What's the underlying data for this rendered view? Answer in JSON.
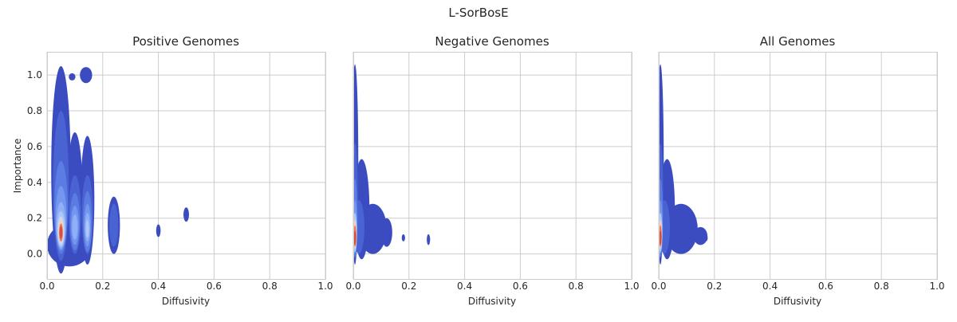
{
  "chart_data": {
    "type": "kde-density",
    "suptitle": "L-SorBosE",
    "shared_y": true,
    "ylabel": "Importance",
    "xlim": [
      0.0,
      1.0
    ],
    "ylim": [
      -0.14,
      1.13
    ],
    "x_ticks": [
      "0.0",
      "0.2",
      "0.4",
      "0.6",
      "0.8",
      "1.0"
    ],
    "y_ticks": [
      "0.0",
      "0.2",
      "0.4",
      "0.6",
      "0.8",
      "1.0"
    ],
    "x_tick_values": [
      0.0,
      0.2,
      0.4,
      0.6,
      0.8,
      1.0
    ],
    "y_tick_values": [
      0.0,
      0.2,
      0.4,
      0.6,
      0.8,
      1.0
    ],
    "grid": true,
    "colormap": [
      "#3b4cc0",
      "#4a63d3",
      "#5b7ce3",
      "#7496ee",
      "#8fb0f7",
      "#aec6fb",
      "#cdd8f0",
      "#ead3c6",
      "#f4b79b",
      "#e9785d",
      "#d44e41"
    ],
    "panels": [
      {
        "title": "Positive Genomes",
        "xlabel": "Diffusivity",
        "density_peak": [
          0.05,
          0.12
        ],
        "clusters": [
          {
            "x": 0.05,
            "y": 0.12,
            "level": 10
          },
          {
            "x": 0.05,
            "y": 0.5,
            "level": 5
          },
          {
            "x": 0.1,
            "y": 0.18,
            "level": 6
          },
          {
            "x": 0.14,
            "y": 0.2,
            "level": 7
          },
          {
            "x": 0.24,
            "y": 0.16,
            "level": 3
          },
          {
            "x": 0.4,
            "y": 0.13,
            "level": 1
          },
          {
            "x": 0.5,
            "y": 0.22,
            "level": 1
          },
          {
            "x": 0.14,
            "y": 1.0,
            "level": 1
          },
          {
            "x": 0.09,
            "y": 0.99,
            "level": 1
          }
        ]
      },
      {
        "title": "Negative Genomes",
        "xlabel": "Diffusivity",
        "density_peak": [
          0.005,
          0.1
        ],
        "clusters": [
          {
            "x": 0.005,
            "y": 0.1,
            "level": 10
          },
          {
            "x": 0.03,
            "y": 0.2,
            "level": 5
          },
          {
            "x": 0.1,
            "y": 0.18,
            "level": 2
          },
          {
            "x": 0.18,
            "y": 0.09,
            "level": 1
          },
          {
            "x": 0.27,
            "y": 0.08,
            "level": 1
          }
        ]
      },
      {
        "title": "All Genomes",
        "xlabel": "Diffusivity",
        "density_peak": [
          0.005,
          0.1
        ],
        "clusters": [
          {
            "x": 0.005,
            "y": 0.1,
            "level": 10
          },
          {
            "x": 0.03,
            "y": 0.2,
            "level": 5
          },
          {
            "x": 0.11,
            "y": 0.17,
            "level": 2
          },
          {
            "x": 0.17,
            "y": 0.09,
            "level": 1
          }
        ]
      }
    ]
  }
}
